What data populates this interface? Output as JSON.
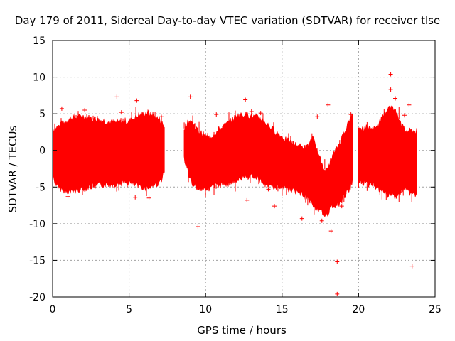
{
  "chart_data": {
    "type": "scatter",
    "title": "Day 179 of 2011, Sidereal Day-to-day VTEC variation (SDTVAR) for receiver tlse",
    "xlabel": "GPS time / hours",
    "ylabel": "SDTVAR / TECUs",
    "xlim": [
      0,
      25
    ],
    "ylim": [
      -20,
      15
    ],
    "xticks": [
      0,
      5,
      10,
      15,
      20,
      25
    ],
    "yticks": [
      -20,
      -15,
      -10,
      -5,
      0,
      5,
      10,
      15
    ],
    "grid": true,
    "marker": "+",
    "series_color": "#ff0000",
    "band_segments": [
      {
        "x": [
          0.0,
          0.3,
          0.6,
          1.2,
          2.0,
          3.0,
          4.0,
          5.0,
          5.5,
          6.2,
          7.0,
          7.3
        ],
        "upper": [
          2.5,
          3.0,
          3.5,
          4.2,
          4.5,
          4.0,
          3.6,
          3.8,
          4.5,
          5.0,
          4.0,
          3.0
        ],
        "lower": [
          -3.2,
          -4.8,
          -5.2,
          -5.5,
          -5.0,
          -4.6,
          -4.4,
          -4.2,
          -4.6,
          -5.0,
          -4.2,
          -3.0
        ]
      },
      {
        "x": [
          8.6,
          9.0,
          9.5,
          10.2,
          11.0,
          12.0,
          12.6,
          13.0,
          13.6,
          14.5,
          15.3,
          16.0,
          16.6,
          17.0,
          17.5,
          17.9,
          18.3,
          18.8,
          19.4,
          19.6
        ],
        "upper": [
          3.0,
          4.0,
          2.5,
          1.5,
          2.8,
          4.5,
          4.8,
          4.5,
          4.2,
          2.5,
          1.2,
          0.5,
          0.2,
          1.5,
          -1.5,
          -3.0,
          -1.0,
          1.0,
          4.0,
          4.5
        ],
        "lower": [
          -1.0,
          -4.0,
          -5.0,
          -5.0,
          -4.5,
          -4.0,
          -3.5,
          -3.2,
          -4.0,
          -4.8,
          -5.0,
          -5.5,
          -6.2,
          -7.2,
          -8.3,
          -8.5,
          -7.5,
          -7.0,
          -5.0,
          -4.0
        ]
      },
      {
        "x": [
          20.0,
          20.5,
          21.0,
          21.5,
          22.0,
          22.5,
          23.0,
          23.5,
          23.8
        ],
        "upper": [
          2.5,
          3.0,
          2.8,
          4.0,
          6.0,
          5.0,
          2.5,
          2.5,
          2.5
        ],
        "lower": [
          -4.0,
          -4.5,
          -4.5,
          -5.5,
          -6.0,
          -6.0,
          -5.0,
          -5.8,
          -5.8
        ]
      }
    ],
    "outliers": [
      {
        "x": 0.6,
        "y": 5.7
      },
      {
        "x": 1.0,
        "y": -6.3
      },
      {
        "x": 2.1,
        "y": 5.5
      },
      {
        "x": 2.2,
        "y": -5.0
      },
      {
        "x": 4.2,
        "y": 7.3
      },
      {
        "x": 4.5,
        "y": 5.2
      },
      {
        "x": 5.5,
        "y": 6.8
      },
      {
        "x": 5.4,
        "y": -6.4
      },
      {
        "x": 6.3,
        "y": -6.5
      },
      {
        "x": 7.1,
        "y": 4.6
      },
      {
        "x": 9.0,
        "y": 7.3
      },
      {
        "x": 9.5,
        "y": -10.4
      },
      {
        "x": 10.7,
        "y": 4.9
      },
      {
        "x": 12.6,
        "y": 6.9
      },
      {
        "x": 12.7,
        "y": -6.8
      },
      {
        "x": 13.0,
        "y": 5.3
      },
      {
        "x": 13.6,
        "y": 5.1
      },
      {
        "x": 14.1,
        "y": -5.3
      },
      {
        "x": 14.5,
        "y": -7.6
      },
      {
        "x": 16.3,
        "y": -9.3
      },
      {
        "x": 17.3,
        "y": 4.6
      },
      {
        "x": 17.6,
        "y": -9.6
      },
      {
        "x": 18.0,
        "y": 6.2
      },
      {
        "x": 18.2,
        "y": -11.0
      },
      {
        "x": 18.6,
        "y": -15.2
      },
      {
        "x": 18.6,
        "y": -19.6
      },
      {
        "x": 18.9,
        "y": -7.6
      },
      {
        "x": 19.5,
        "y": 4.9
      },
      {
        "x": 22.1,
        "y": 10.4
      },
      {
        "x": 22.1,
        "y": 8.3
      },
      {
        "x": 22.4,
        "y": 7.1
      },
      {
        "x": 23.0,
        "y": 4.8
      },
      {
        "x": 23.3,
        "y": 6.2
      },
      {
        "x": 23.5,
        "y": -15.8
      }
    ]
  }
}
